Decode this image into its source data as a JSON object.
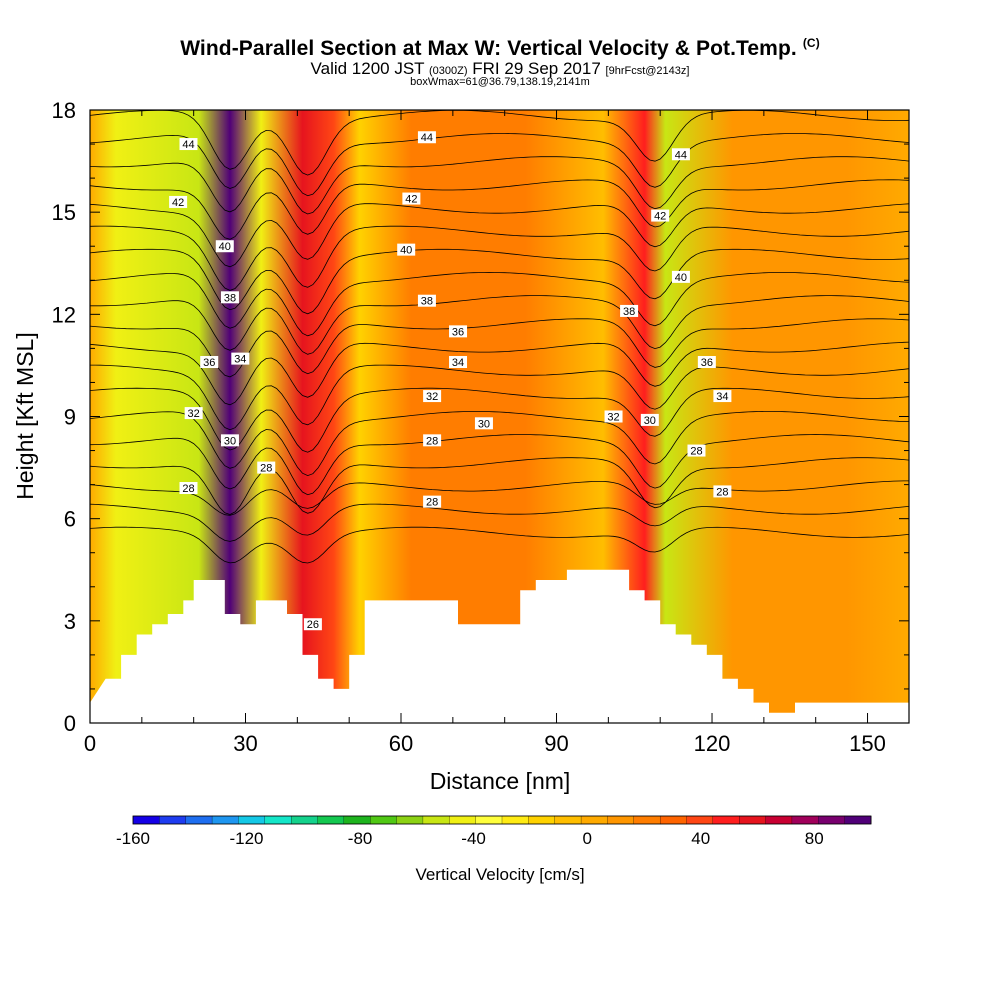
{
  "header": {
    "title": "Wind-Parallel Section at Max W: Vertical Velocity & Pot.Temp.",
    "title_unit": "(C)",
    "subtitle_valid": "Valid 1200 JST",
    "subtitle_utc": "(0300Z)",
    "subtitle_date": "FRI 29 Sep 2017",
    "subtitle_fcst": "[9hrFcst@2143z]",
    "subtitle_box": "boxWmax=61@36.79,138.19,2141m"
  },
  "colorbar": {
    "label": "Vertical Velocity [cm/s]",
    "tick_labels": [
      "-160",
      "-120",
      "-80",
      "-40",
      "0",
      "40",
      "80"
    ],
    "colors": [
      "#1400e6",
      "#1e3cf0",
      "#1e6ef0",
      "#1e96f0",
      "#14c8e6",
      "#14e6c8",
      "#14d28c",
      "#14c850",
      "#1eb41e",
      "#50c814",
      "#8cd214",
      "#c8e614",
      "#f0f014",
      "#ffff3c",
      "#ffeb14",
      "#ffd200",
      "#ffbe00",
      "#ffaa00",
      "#ff9600",
      "#ff7d00",
      "#ff6400",
      "#ff4614",
      "#ff1e1e",
      "#e6141e",
      "#c80032",
      "#a0005a",
      "#78006e",
      "#500078"
    ]
  },
  "chart_data": {
    "type": "heatmap",
    "xlabel": "Distance [nm]",
    "ylabel": "Height [Kft MSL]",
    "xlim": [
      0,
      158
    ],
    "ylim": [
      0,
      18
    ],
    "x_ticks": [
      0,
      30,
      60,
      90,
      120,
      150
    ],
    "y_ticks": [
      0,
      3,
      6,
      9,
      12,
      15,
      18
    ],
    "colorbar_range": [
      -160,
      100
    ],
    "field": "vertical velocity (cm/s), filled contours",
    "contour_field": "potential temperature (C), black line contours every 1 C",
    "contour_range": [
      26,
      44
    ],
    "terrain_kft": [
      [
        0,
        0.6
      ],
      [
        3,
        1.3
      ],
      [
        6,
        1.3
      ],
      [
        6,
        2.0
      ],
      [
        9,
        2.0
      ],
      [
        9,
        2.6
      ],
      [
        12,
        2.6
      ],
      [
        12,
        2.9
      ],
      [
        15,
        2.9
      ],
      [
        15,
        3.2
      ],
      [
        18,
        3.2
      ],
      [
        18,
        3.6
      ],
      [
        20,
        3.6
      ],
      [
        20,
        4.2
      ],
      [
        26,
        4.2
      ],
      [
        26,
        3.2
      ],
      [
        29,
        3.2
      ],
      [
        29,
        2.9
      ],
      [
        32,
        2.9
      ],
      [
        32,
        3.6
      ],
      [
        38,
        3.6
      ],
      [
        38,
        3.2
      ],
      [
        41,
        3.2
      ],
      [
        41,
        2.0
      ],
      [
        44,
        2.0
      ],
      [
        44,
        1.3
      ],
      [
        47,
        1.3
      ],
      [
        47,
        1.0
      ],
      [
        50,
        1.0
      ],
      [
        50,
        2.0
      ],
      [
        53,
        2.0
      ],
      [
        53,
        3.6
      ],
      [
        71,
        3.6
      ],
      [
        71,
        2.9
      ],
      [
        83,
        2.9
      ],
      [
        83,
        3.9
      ],
      [
        86,
        3.9
      ],
      [
        86,
        4.2
      ],
      [
        92,
        4.2
      ],
      [
        92,
        4.5
      ],
      [
        104,
        4.5
      ],
      [
        104,
        3.9
      ],
      [
        107,
        3.9
      ],
      [
        107,
        3.6
      ],
      [
        110,
        3.6
      ],
      [
        110,
        2.9
      ],
      [
        113,
        2.9
      ],
      [
        113,
        2.6
      ],
      [
        116,
        2.6
      ],
      [
        116,
        2.3
      ],
      [
        119,
        2.3
      ],
      [
        119,
        2.0
      ],
      [
        122,
        2.0
      ],
      [
        122,
        1.3
      ],
      [
        125,
        1.3
      ],
      [
        125,
        1.0
      ],
      [
        128,
        1.0
      ],
      [
        128,
        0.6
      ],
      [
        131,
        0.6
      ],
      [
        131,
        0.3
      ],
      [
        136,
        0.3
      ],
      [
        136,
        0.6
      ],
      [
        158,
        0.6
      ]
    ],
    "velocity_bands": [
      {
        "x": 5,
        "w_cms": -45
      },
      {
        "x": 21,
        "w_cms": -55
      },
      {
        "x": 27,
        "w_cms": 95
      },
      {
        "x": 33,
        "w_cms": -40
      },
      {
        "x": 41,
        "w_cms": 60
      },
      {
        "x": 47,
        "w_cms": 35
      },
      {
        "x": 52,
        "w_cms": -15
      },
      {
        "x": 62,
        "w_cms": 25
      },
      {
        "x": 84,
        "w_cms": 25
      },
      {
        "x": 99,
        "w_cms": -10
      },
      {
        "x": 107,
        "w_cms": 45
      },
      {
        "x": 111,
        "w_cms": -55
      },
      {
        "x": 124,
        "w_cms": 15
      },
      {
        "x": 146,
        "w_cms": 10
      }
    ],
    "contour_labels": [
      {
        "text": "44",
        "x": 19,
        "y": 17.0
      },
      {
        "text": "44",
        "x": 65,
        "y": 17.2
      },
      {
        "text": "44",
        "x": 114,
        "y": 16.7
      },
      {
        "text": "42",
        "x": 17,
        "y": 15.3
      },
      {
        "text": "42",
        "x": 62,
        "y": 15.4
      },
      {
        "text": "42",
        "x": 110,
        "y": 14.9
      },
      {
        "text": "40",
        "x": 26,
        "y": 14.0
      },
      {
        "text": "40",
        "x": 61,
        "y": 13.9
      },
      {
        "text": "40",
        "x": 114,
        "y": 13.1
      },
      {
        "text": "38",
        "x": 27,
        "y": 12.5
      },
      {
        "text": "38",
        "x": 65,
        "y": 12.4
      },
      {
        "text": "38",
        "x": 104,
        "y": 12.1
      },
      {
        "text": "36",
        "x": 71,
        "y": 11.5
      },
      {
        "text": "36",
        "x": 23,
        "y": 10.6
      },
      {
        "text": "36",
        "x": 119,
        "y": 10.6
      },
      {
        "text": "34",
        "x": 29,
        "y": 10.7
      },
      {
        "text": "34",
        "x": 71,
        "y": 10.6
      },
      {
        "text": "34",
        "x": 122,
        "y": 9.6
      },
      {
        "text": "32",
        "x": 66,
        "y": 9.6
      },
      {
        "text": "32",
        "x": 20,
        "y": 9.1
      },
      {
        "text": "32",
        "x": 101,
        "y": 9.0
      },
      {
        "text": "30",
        "x": 76,
        "y": 8.8
      },
      {
        "text": "30",
        "x": 108,
        "y": 8.9
      },
      {
        "text": "30",
        "x": 27,
        "y": 8.3
      },
      {
        "text": "28",
        "x": 66,
        "y": 8.3
      },
      {
        "text": "28",
        "x": 117,
        "y": 8.0
      },
      {
        "text": "28",
        "x": 34,
        "y": 7.5
      },
      {
        "text": "28",
        "x": 19,
        "y": 6.9
      },
      {
        "text": "28",
        "x": 66,
        "y": 6.5
      },
      {
        "text": "28",
        "x": 122,
        "y": 6.8
      },
      {
        "text": "26",
        "x": 43,
        "y": 2.9
      }
    ]
  }
}
